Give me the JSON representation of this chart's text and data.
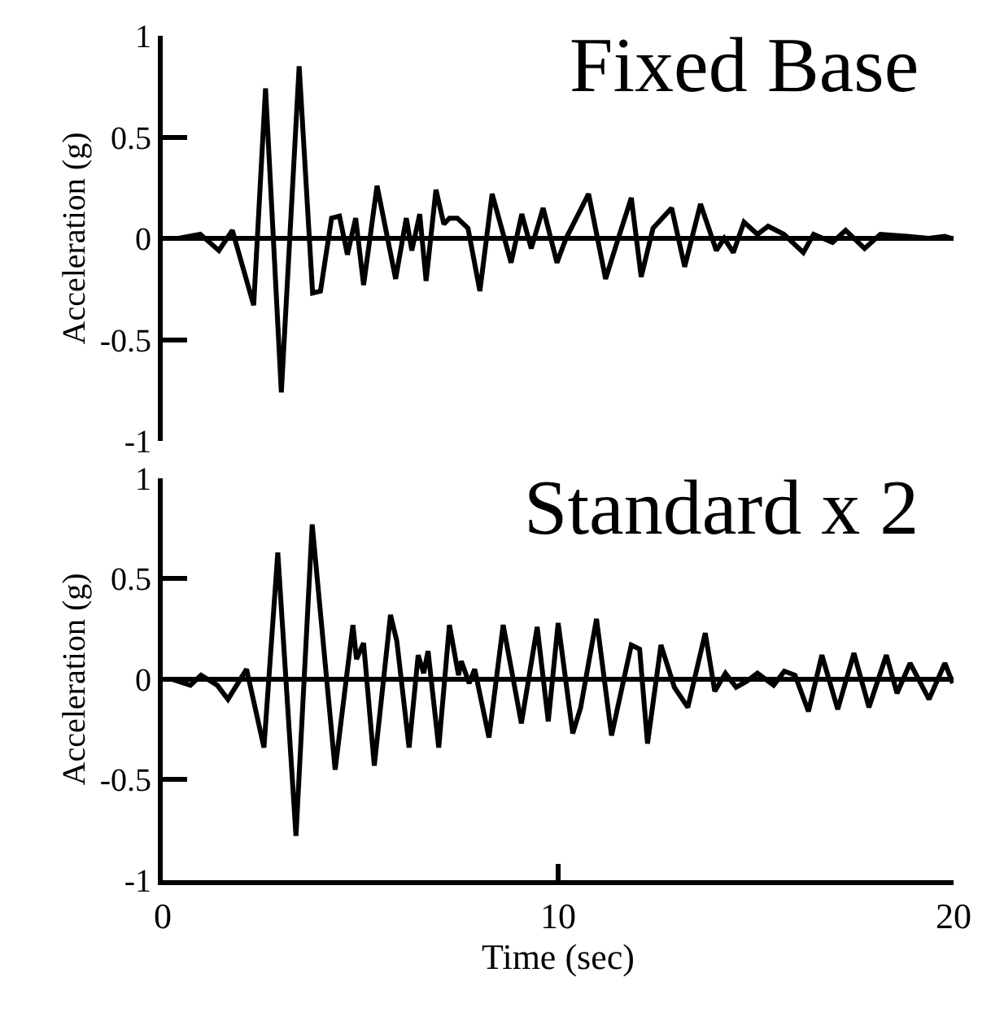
{
  "chart_data": [
    {
      "type": "line",
      "title": "Fixed Base",
      "ylabel": "Acceleration (g)",
      "xlim": [
        0,
        20
      ],
      "ylim": [
        -1,
        1
      ],
      "yticks": [
        -1,
        -0.5,
        0,
        0.5,
        1
      ],
      "tick_labels": "y",
      "marker": "none",
      "line_style": "solid",
      "ref_lines": [
        {
          "axis": "y",
          "value": 0,
          "color": "#000000"
        }
      ],
      "series": [
        {
          "color": "#000000",
          "x": [
            0,
            0.4,
            0.95,
            1.42,
            1.76,
            2.3,
            2.6,
            3.0,
            3.45,
            3.79,
            3.99,
            4.27,
            4.47,
            4.67,
            4.88,
            5.08,
            5.42,
            5.89,
            6.16,
            6.3,
            6.5,
            6.66,
            6.91,
            7.11,
            7.25,
            7.45,
            7.72,
            8.02,
            8.33,
            8.81,
            9.08,
            9.32,
            9.62,
            9.97,
            10.2,
            10.77,
            11.2,
            11.52,
            11.85,
            12.1,
            12.4,
            12.87,
            13.2,
            13.6,
            14.0,
            14.2,
            14.43,
            14.7,
            15.04,
            15.31,
            15.71,
            16.2,
            16.46,
            16.94,
            17.27,
            17.75,
            18.15,
            18.83,
            19.37,
            19.78,
            19.95
          ],
          "values": [
            0,
            0,
            0.02,
            -0.06,
            0.04,
            -0.33,
            0.74,
            -0.76,
            0.85,
            -0.27,
            -0.26,
            0.1,
            0.11,
            -0.08,
            0.1,
            -0.23,
            0.26,
            -0.2,
            0.1,
            -0.06,
            0.12,
            -0.21,
            0.24,
            0.07,
            0.1,
            0.1,
            0.05,
            -0.26,
            0.22,
            -0.12,
            0.12,
            -0.05,
            0.15,
            -0.12,
            0,
            0.22,
            -0.2,
            0,
            0.2,
            -0.19,
            0.05,
            0.15,
            -0.14,
            0.17,
            -0.06,
            0,
            -0.07,
            0.08,
            0.02,
            0.06,
            0.02,
            -0.07,
            0.02,
            -0.02,
            0.04,
            -0.05,
            0.02,
            0.01,
            0,
            0.01,
            0
          ]
        }
      ]
    },
    {
      "type": "line",
      "title": "Standard x 2",
      "xlabel": "Time (sec)",
      "ylabel": "Acceleration (g)",
      "xlim": [
        0,
        20
      ],
      "xticks": [
        0,
        10,
        20
      ],
      "ylim": [
        -1,
        1
      ],
      "yticks": [
        -1,
        -0.5,
        0,
        0.5,
        1
      ],
      "marker": "none",
      "line_style": "solid",
      "ref_lines": [
        {
          "axis": "y",
          "value": 0,
          "color": "#000000"
        }
      ],
      "series": [
        {
          "color": "#000000",
          "x": [
            0,
            0.23,
            0.7,
            0.97,
            1.38,
            1.65,
            2.12,
            2.56,
            2.91,
            3.37,
            3.78,
            4.36,
            4.81,
            4.9,
            5.08,
            5.35,
            5.76,
            5.92,
            6.23,
            6.46,
            6.6,
            6.71,
            6.98,
            7.25,
            7.48,
            7.55,
            7.75,
            7.89,
            8.25,
            8.61,
            9.07,
            9.47,
            9.75,
            10.0,
            10.37,
            10.57,
            10.97,
            11.35,
            11.85,
            12.06,
            12.26,
            12.6,
            12.94,
            13.28,
            13.72,
            13.96,
            14.23,
            14.5,
            14.77,
            15.04,
            15.45,
            15.72,
            15.99,
            16.33,
            16.67,
            17.07,
            17.48,
            17.86,
            18.3,
            18.57,
            18.9,
            19.38,
            19.78,
            19.98
          ],
          "values": [
            0,
            0,
            -0.03,
            0.02,
            -0.03,
            -0.1,
            0.05,
            -0.34,
            0.63,
            -0.78,
            0.77,
            -0.45,
            0.27,
            0.1,
            0.18,
            -0.43,
            0.32,
            0.19,
            -0.34,
            0.12,
            0.03,
            0.14,
            -0.34,
            0.27,
            0.02,
            0.09,
            -0.02,
            0.05,
            -0.29,
            0.27,
            -0.22,
            0.26,
            -0.21,
            0.28,
            -0.27,
            -0.14,
            0.3,
            -0.28,
            0.17,
            0.15,
            -0.32,
            0.17,
            -0.04,
            -0.14,
            0.23,
            -0.06,
            0.03,
            -0.04,
            -0.01,
            0.03,
            -0.03,
            0.04,
            0.02,
            -0.16,
            0.12,
            -0.15,
            0.13,
            -0.14,
            0.12,
            -0.07,
            0.08,
            -0.1,
            0.08,
            -0.02
          ]
        }
      ]
    }
  ]
}
